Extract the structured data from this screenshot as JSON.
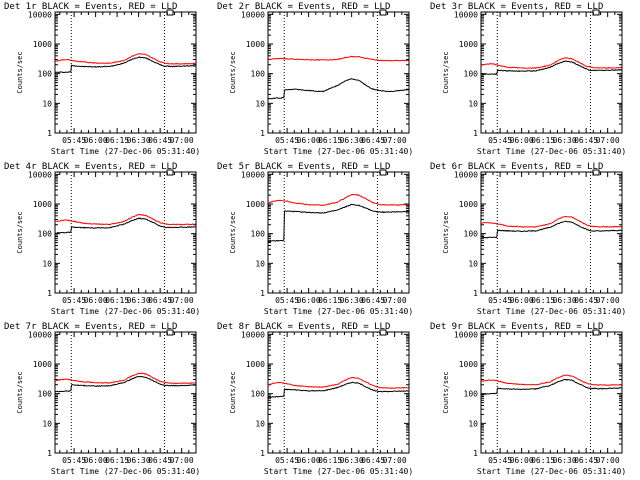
{
  "figure": {
    "time_range": [
      "05:31:40",
      "07:10:00"
    ],
    "tick_labels": [
      "05:45",
      "06:00",
      "06:15",
      "06:30",
      "06:45",
      "07:00"
    ],
    "tick_minutes": [
      345,
      360,
      375,
      390,
      405,
      420
    ],
    "x_minutes_range": [
      331.67,
      430
    ],
    "y_tick_labels": [
      "10000",
      "1000",
      "100",
      "10",
      "1"
    ],
    "y_tick_values": [
      10000,
      1000,
      100,
      10,
      1
    ],
    "ylim": [
      1,
      12000
    ],
    "xlabel": "Start Time (27-Dec-06 05:31:40)",
    "ylabel": "Counts/sec",
    "dotted_line_minutes": [
      343,
      408
    ],
    "black_color": "#000000",
    "red_color": "#ff0000"
  },
  "chart_data": [
    {
      "type": "line",
      "title": "Det 1r BLACK = Events, RED = LLD",
      "y_scale": "log",
      "series": [
        {
          "name": "Events",
          "color": "#000000",
          "x": [
            331.67,
            336,
            340,
            343,
            343.1,
            350,
            360,
            370,
            380,
            385,
            390,
            395,
            400,
            405,
            408,
            415,
            420,
            430
          ],
          "values": [
            110,
            112,
            112,
            115,
            190,
            175,
            170,
            175,
            230,
            300,
            360,
            340,
            260,
            200,
            180,
            175,
            180,
            185
          ]
        },
        {
          "name": "LLD",
          "color": "#ff0000",
          "x": [
            331.67,
            336,
            340,
            345,
            350,
            360,
            370,
            380,
            385,
            390,
            395,
            400,
            405,
            410,
            415,
            420,
            430
          ],
          "values": [
            260,
            290,
            300,
            270,
            250,
            230,
            225,
            280,
            380,
            470,
            440,
            330,
            250,
            220,
            215,
            215,
            220
          ]
        }
      ]
    },
    {
      "type": "line",
      "title": "Det 2r BLACK = Events, RED = LLD",
      "y_scale": "log",
      "series": [
        {
          "name": "Events",
          "color": "#000000",
          "x": [
            331.67,
            336,
            340,
            343,
            343.1,
            350,
            360,
            370,
            380,
            385,
            390,
            395,
            400,
            405,
            410,
            415,
            420,
            430
          ],
          "values": [
            14,
            15,
            15,
            16,
            28,
            30,
            27,
            25,
            40,
            55,
            68,
            60,
            40,
            30,
            27,
            25,
            26,
            29
          ]
        },
        {
          "name": "LLD",
          "color": "#ff0000",
          "x": [
            331.67,
            336,
            340,
            345,
            350,
            360,
            370,
            380,
            385,
            390,
            395,
            400,
            405,
            410,
            415,
            420,
            430
          ],
          "values": [
            300,
            320,
            325,
            315,
            305,
            295,
            290,
            300,
            340,
            380,
            370,
            330,
            300,
            280,
            275,
            275,
            280
          ]
        }
      ]
    },
    {
      "type": "line",
      "title": "Det 3r BLACK = Events, RED = LLD",
      "y_scale": "log",
      "series": [
        {
          "name": "Events",
          "color": "#000000",
          "x": [
            331.67,
            336,
            340,
            343,
            343.1,
            350,
            360,
            370,
            380,
            385,
            390,
            395,
            400,
            405,
            408,
            415,
            420,
            430
          ],
          "values": [
            95,
            97,
            97,
            98,
            130,
            125,
            122,
            125,
            165,
            215,
            265,
            250,
            190,
            145,
            130,
            128,
            130,
            135
          ]
        },
        {
          "name": "LLD",
          "color": "#ff0000",
          "x": [
            331.67,
            336,
            340,
            345,
            350,
            360,
            370,
            380,
            385,
            390,
            395,
            400,
            405,
            410,
            415,
            420,
            430
          ],
          "values": [
            190,
            210,
            215,
            185,
            165,
            155,
            155,
            195,
            270,
            340,
            320,
            240,
            180,
            160,
            155,
            155,
            160
          ]
        }
      ]
    },
    {
      "type": "line",
      "title": "Det 4r BLACK = Events, RED = LLD",
      "y_scale": "log",
      "series": [
        {
          "name": "Events",
          "color": "#000000",
          "x": [
            331.67,
            336,
            340,
            343,
            343.1,
            350,
            360,
            370,
            380,
            385,
            390,
            395,
            400,
            405,
            408,
            415,
            420,
            430
          ],
          "values": [
            105,
            108,
            110,
            112,
            165,
            160,
            155,
            160,
            210,
            270,
            330,
            310,
            240,
            180,
            165,
            162,
            165,
            170
          ]
        },
        {
          "name": "LLD",
          "color": "#ff0000",
          "x": [
            331.67,
            336,
            340,
            345,
            350,
            360,
            370,
            380,
            385,
            390,
            395,
            400,
            405,
            410,
            415,
            420,
            430
          ],
          "values": [
            250,
            280,
            290,
            260,
            230,
            210,
            205,
            260,
            350,
            440,
            410,
            310,
            235,
            210,
            205,
            205,
            210
          ]
        }
      ]
    },
    {
      "type": "line",
      "title": "Det 5r BLACK = Events, RED = LLD",
      "y_scale": "log",
      "series": [
        {
          "name": "Events",
          "color": "#000000",
          "x": [
            331.67,
            336,
            340,
            343,
            343.1,
            350,
            360,
            370,
            380,
            385,
            390,
            395,
            400,
            405,
            408,
            415,
            420,
            430
          ],
          "values": [
            55,
            57,
            58,
            60,
            580,
            560,
            520,
            500,
            620,
            780,
            960,
            900,
            720,
            580,
            540,
            530,
            545,
            560
          ]
        },
        {
          "name": "LLD",
          "color": "#ff0000",
          "x": [
            331.67,
            336,
            340,
            345,
            350,
            360,
            370,
            380,
            385,
            390,
            395,
            400,
            405,
            410,
            415,
            420,
            430
          ],
          "values": [
            1100,
            1250,
            1350,
            1250,
            1100,
            950,
            900,
            1150,
            1550,
            2100,
            2000,
            1500,
            1100,
            950,
            920,
            930,
            950
          ]
        }
      ]
    },
    {
      "type": "line",
      "title": "Det 6r BLACK = Events, RED = LLD",
      "y_scale": "log",
      "series": [
        {
          "name": "Events",
          "color": "#000000",
          "x": [
            331.67,
            336,
            340,
            343,
            343.1,
            350,
            360,
            370,
            380,
            385,
            390,
            395,
            400,
            405,
            408,
            415,
            420,
            430
          ],
          "values": [
            72,
            74,
            75,
            76,
            130,
            125,
            120,
            125,
            165,
            215,
            260,
            245,
            185,
            140,
            125,
            122,
            125,
            130
          ]
        },
        {
          "name": "LLD",
          "color": "#ff0000",
          "x": [
            331.67,
            336,
            340,
            345,
            350,
            360,
            370,
            380,
            385,
            390,
            395,
            400,
            405,
            410,
            415,
            420,
            430
          ],
          "values": [
            230,
            235,
            230,
            205,
            180,
            170,
            170,
            215,
            300,
            380,
            360,
            270,
            200,
            175,
            170,
            170,
            175
          ]
        }
      ]
    },
    {
      "type": "line",
      "title": "Det 7r BLACK = Events, RED = LLD",
      "y_scale": "log",
      "series": [
        {
          "name": "Events",
          "color": "#000000",
          "x": [
            331.67,
            336,
            340,
            343,
            343.1,
            350,
            360,
            370,
            380,
            385,
            390,
            395,
            400,
            405,
            408,
            415,
            420,
            430
          ],
          "values": [
            118,
            120,
            122,
            125,
            200,
            190,
            180,
            185,
            240,
            310,
            380,
            360,
            275,
            210,
            190,
            185,
            188,
            195
          ]
        },
        {
          "name": "LLD",
          "color": "#ff0000",
          "x": [
            331.67,
            336,
            340,
            345,
            350,
            360,
            370,
            380,
            385,
            390,
            395,
            400,
            405,
            410,
            415,
            420,
            430
          ],
          "values": [
            270,
            300,
            310,
            280,
            255,
            235,
            230,
            285,
            390,
            490,
            460,
            345,
            260,
            230,
            225,
            225,
            230
          ]
        }
      ]
    },
    {
      "type": "line",
      "title": "Det 8r BLACK = Events, RED = LLD",
      "y_scale": "log",
      "series": [
        {
          "name": "Events",
          "color": "#000000",
          "x": [
            331.67,
            336,
            340,
            343,
            343.1,
            350,
            360,
            370,
            380,
            385,
            390,
            395,
            400,
            405,
            408,
            415,
            420,
            430
          ],
          "values": [
            75,
            78,
            80,
            82,
            140,
            135,
            125,
            125,
            160,
            200,
            240,
            225,
            170,
            130,
            120,
            118,
            120,
            125
          ]
        },
        {
          "name": "LLD",
          "color": "#ff0000",
          "x": [
            331.67,
            336,
            340,
            345,
            350,
            360,
            370,
            380,
            385,
            390,
            395,
            400,
            405,
            410,
            415,
            420,
            430
          ],
          "values": [
            200,
            230,
            240,
            215,
            190,
            170,
            165,
            205,
            280,
            350,
            330,
            245,
            185,
            160,
            155,
            155,
            160
          ]
        }
      ]
    },
    {
      "type": "line",
      "title": "Det 9r BLACK = Events, RED = LLD",
      "y_scale": "log",
      "series": [
        {
          "name": "Events",
          "color": "#000000",
          "x": [
            331.67,
            336,
            340,
            343,
            343.1,
            350,
            360,
            370,
            380,
            385,
            390,
            395,
            400,
            405,
            408,
            415,
            420,
            430
          ],
          "values": [
            95,
            98,
            100,
            102,
            150,
            145,
            140,
            145,
            190,
            245,
            300,
            285,
            215,
            165,
            150,
            148,
            150,
            155
          ]
        },
        {
          "name": "LLD",
          "color": "#ff0000",
          "x": [
            331.67,
            336,
            340,
            345,
            350,
            360,
            370,
            380,
            385,
            390,
            395,
            400,
            405,
            410,
            415,
            420,
            430
          ],
          "values": [
            260,
            285,
            290,
            255,
            225,
            205,
            200,
            250,
            340,
            420,
            400,
            300,
            225,
            200,
            195,
            195,
            200
          ]
        }
      ]
    }
  ]
}
